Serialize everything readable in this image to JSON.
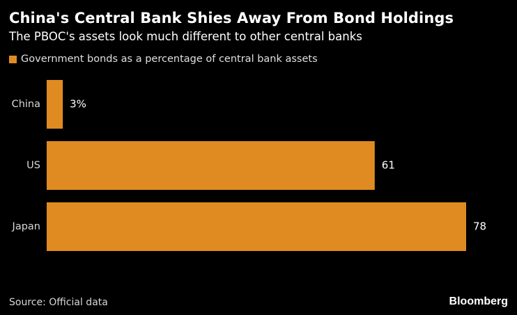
{
  "header": {
    "title": "China's Central Bank Shies Away From Bond Holdings",
    "subtitle": "The PBOC's assets look much different to other central banks"
  },
  "legend": {
    "label": "Government bonds as a percentage of central bank assets"
  },
  "footer": {
    "source": "Source: Official data",
    "brand": "Bloomberg"
  },
  "colors": {
    "bar": "#E08B22",
    "background": "#000000",
    "text": "#FFFFFF"
  },
  "chart_data": {
    "type": "bar",
    "orientation": "horizontal",
    "categories": [
      "China",
      "US",
      "Japan"
    ],
    "values": [
      3,
      61,
      78
    ],
    "data_labels": [
      "3%",
      "61",
      "78"
    ],
    "title": "China's Central Bank Shies Away From Bond Holdings",
    "subtitle": "The PBOC's assets look much different to other central banks",
    "series": [
      {
        "name": "Government bonds as a percentage of central bank assets",
        "values": [
          3,
          61,
          78
        ]
      }
    ],
    "xlim": [
      0,
      78
    ],
    "grid": false,
    "legend_position": "top-left"
  }
}
